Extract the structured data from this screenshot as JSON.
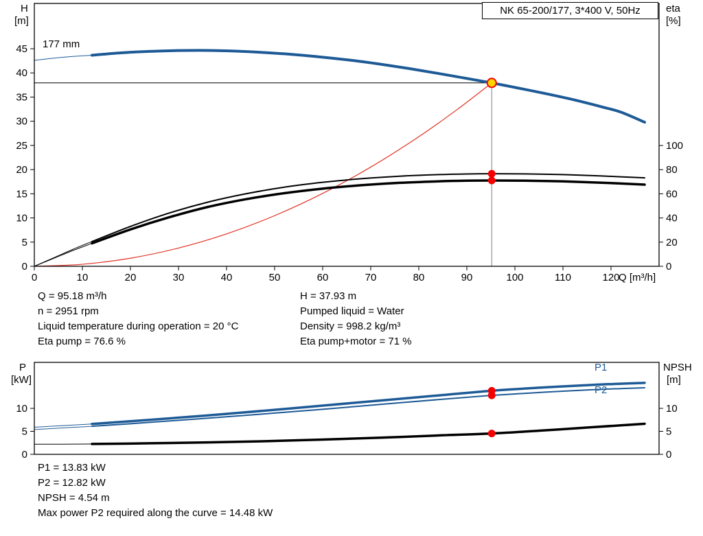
{
  "header": {
    "title": "NK 65-200/177, 3*400 V, 50Hz"
  },
  "labels": {
    "h": "H",
    "h_unit": "[m]",
    "eta": "eta",
    "eta_unit": "[%]",
    "q_axis": "Q [m³/h]",
    "p": "P",
    "p_unit": "[kW]",
    "npsh": "NPSH",
    "npsh_unit": "[m]",
    "impeller": "177 mm",
    "p1": "P1",
    "p2": "P2"
  },
  "info": {
    "q": "Q = 95.18 m³/h",
    "n": "n = 2951 rpm",
    "temp": "Liquid temperature during operation = 20 °C",
    "eta_pump": "Eta pump = 76.6 %",
    "h": "H = 37.93 m",
    "liquid": "Pumped liquid = Water",
    "density": "Density = 998.2 kg/m³",
    "eta_total": "Eta pump+motor = 71 %"
  },
  "results": {
    "p1": "P1 = 13.83 kW",
    "p2": "P2 = 12.82 kW",
    "npsh": "NPSH = 4.54 m",
    "maxp2": "Max power P2 required along the curve = 14.48 kW"
  },
  "colors": {
    "curve_blue": "#1d5a96",
    "system_red": "#e03022",
    "marker_red": "#f40000",
    "duty_yellow": "#ffd400",
    "guide_gray": "#808080"
  },
  "chart_data": [
    {
      "type": "line",
      "title": "NK 65-200/177, 3*400 V, 50Hz",
      "xlabel": "Q [m³/h]",
      "xlim": [
        0,
        130
      ],
      "x_ticks": [
        0,
        10,
        20,
        30,
        40,
        50,
        60,
        70,
        80,
        90,
        100,
        110,
        120
      ],
      "axes": {
        "left": {
          "label": "H [m]",
          "scale": [
            0,
            45
          ],
          "ticks": [
            0,
            5,
            10,
            15,
            20,
            25,
            30,
            35,
            40,
            45
          ]
        },
        "right": {
          "label": "eta [%]",
          "scale": [
            0,
            100
          ],
          "ticks": [
            0,
            20,
            40,
            60,
            80,
            100
          ]
        }
      },
      "series": [
        {
          "name": "system-curve",
          "axis": "left",
          "color": "#e03022",
          "width": 1.2,
          "points": [
            [
              0,
              0
            ],
            [
              10,
              0.42
            ],
            [
              20,
              1.67
            ],
            [
              30,
              3.77
            ],
            [
              40,
              6.7
            ],
            [
              50,
              10.47
            ],
            [
              60,
              15.07
            ],
            [
              70,
              20.52
            ],
            [
              80,
              26.8
            ],
            [
              88,
              32.43
            ],
            [
              95.18,
              37.93
            ]
          ]
        },
        {
          "name": "eta-pump-curve",
          "axis": "right",
          "color": "#000000",
          "width": 2,
          "lead": [
            [
              0,
              0
            ],
            [
              4,
              7
            ],
            [
              8,
              14
            ],
            [
              12,
              20.5
            ]
          ],
          "points": [
            [
              12,
              20.5
            ],
            [
              20,
              33
            ],
            [
              28,
              44
            ],
            [
              36,
              53
            ],
            [
              44,
              60
            ],
            [
              52,
              65.5
            ],
            [
              60,
              69.5
            ],
            [
              68,
              72.5
            ],
            [
              76,
              74.6
            ],
            [
              84,
              75.9
            ],
            [
              90,
              76.45
            ],
            [
              95.18,
              76.6
            ],
            [
              102,
              76.5
            ],
            [
              110,
              75.9
            ],
            [
              118,
              74.8
            ],
            [
              127,
              73.2
            ]
          ]
        },
        {
          "name": "eta-pump-motor-curve",
          "axis": "right",
          "color": "#000000",
          "width": 3.5,
          "lead": [
            [
              0,
              0
            ],
            [
              4,
              6.5
            ],
            [
              8,
              13
            ],
            [
              12,
              19
            ]
          ],
          "points": [
            [
              12,
              19
            ],
            [
              20,
              30.5
            ],
            [
              28,
              40.5
            ],
            [
              36,
              49
            ],
            [
              44,
              55.5
            ],
            [
              52,
              60.5
            ],
            [
              60,
              64.3
            ],
            [
              68,
              67.1
            ],
            [
              76,
              69.1
            ],
            [
              84,
              70.3
            ],
            [
              90,
              70.85
            ],
            [
              95.18,
              71
            ],
            [
              102,
              70.9
            ],
            [
              110,
              70.3
            ],
            [
              118,
              69.2
            ],
            [
              127,
              67.6
            ]
          ]
        },
        {
          "name": "head-curve-177mm",
          "axis": "left",
          "color": "#1d5a96",
          "width": 4,
          "lead": [
            [
              0,
              42.6
            ],
            [
              4,
              43.05
            ],
            [
              8,
              43.4
            ],
            [
              12,
              43.65
            ]
          ],
          "points": [
            [
              12,
              43.65
            ],
            [
              18,
              44.15
            ],
            [
              24,
              44.45
            ],
            [
              30,
              44.62
            ],
            [
              36,
              44.65
            ],
            [
              42,
              44.5
            ],
            [
              48,
              44.2
            ],
            [
              54,
              43.8
            ],
            [
              60,
              43.25
            ],
            [
              66,
              42.6
            ],
            [
              72,
              41.8
            ],
            [
              78,
              40.9
            ],
            [
              84,
              39.9
            ],
            [
              90,
              38.85
            ],
            [
              95.18,
              37.93
            ],
            [
              100,
              37.0
            ],
            [
              106,
              35.8
            ],
            [
              112,
              34.5
            ],
            [
              118,
              33.0
            ],
            [
              122,
              31.9
            ],
            [
              127,
              29.8
            ]
          ]
        }
      ],
      "guides": [
        {
          "type": "h",
          "axis": "left",
          "v": 37.93,
          "q0": 0,
          "q1": 95.18,
          "color": "#000000",
          "width": 1
        },
        {
          "type": "v",
          "axis": "left",
          "q": 95.18,
          "v0": 0,
          "v1": 37.93,
          "color": "#808080",
          "width": 1
        }
      ],
      "markers": [
        {
          "name": "eta-pump-point",
          "q": 95.18,
          "v": 76.6,
          "axis": "right",
          "fill": "#f40000",
          "r": 5.5
        },
        {
          "name": "eta-pump-motor-point",
          "q": 95.18,
          "v": 71,
          "axis": "right",
          "fill": "#f40000",
          "r": 5.5
        },
        {
          "name": "duty-point",
          "q": 95.18,
          "v": 37.93,
          "axis": "left",
          "fill": "#ffd400",
          "stroke": "#f40000",
          "r": 6.5
        }
      ]
    },
    {
      "type": "line",
      "xlim": [
        0,
        130
      ],
      "x_ticks": [],
      "axes": {
        "left": {
          "label": "P [kW]",
          "scale": [
            0,
            10
          ],
          "ticks": [
            0,
            5,
            10
          ]
        },
        "right": {
          "label": "NPSH [m]",
          "scale": [
            0,
            10
          ],
          "ticks": [
            0,
            5,
            10
          ]
        }
      },
      "series": [
        {
          "name": "p1-curve",
          "axis": "left",
          "color": "#1d5a96",
          "width": 3.5,
          "lead": [
            [
              0,
              5.9
            ],
            [
              6,
              6.25
            ],
            [
              12,
              6.6
            ]
          ],
          "points": [
            [
              12,
              6.6
            ],
            [
              24,
              7.5
            ],
            [
              36,
              8.45
            ],
            [
              48,
              9.5
            ],
            [
              60,
              10.6
            ],
            [
              72,
              11.7
            ],
            [
              84,
              12.8
            ],
            [
              95.18,
              13.83
            ],
            [
              106,
              14.55
            ],
            [
              116,
              15.1
            ],
            [
              122,
              15.35
            ],
            [
              127,
              15.55
            ]
          ]
        },
        {
          "name": "p2-curve",
          "axis": "left",
          "color": "#1d5a96",
          "width": 2,
          "lead": [
            [
              0,
              5.4
            ],
            [
              6,
              5.75
            ],
            [
              12,
              6.1
            ]
          ],
          "points": [
            [
              12,
              6.1
            ],
            [
              24,
              6.95
            ],
            [
              36,
              7.85
            ],
            [
              48,
              8.8
            ],
            [
              60,
              9.8
            ],
            [
              72,
              10.85
            ],
            [
              84,
              11.9
            ],
            [
              95.18,
              12.82
            ],
            [
              106,
              13.5
            ],
            [
              116,
              14.05
            ],
            [
              122,
              14.3
            ],
            [
              127,
              14.48
            ]
          ]
        },
        {
          "name": "npsh-curve",
          "axis": "left",
          "color": "#000000",
          "width": 3.5,
          "lead": [
            [
              0,
              2.2
            ],
            [
              6,
              2.2
            ],
            [
              12,
              2.25
            ]
          ],
          "points": [
            [
              12,
              2.25
            ],
            [
              24,
              2.4
            ],
            [
              36,
              2.6
            ],
            [
              48,
              2.85
            ],
            [
              60,
              3.2
            ],
            [
              72,
              3.62
            ],
            [
              84,
              4.1
            ],
            [
              95.18,
              4.54
            ],
            [
              106,
              5.2
            ],
            [
              116,
              5.9
            ],
            [
              122,
              6.3
            ],
            [
              127,
              6.65
            ]
          ]
        }
      ],
      "guides": [],
      "markers": [
        {
          "name": "p1-point",
          "q": 95.18,
          "v": 13.83,
          "axis": "left",
          "fill": "#f40000",
          "r": 5.5
        },
        {
          "name": "p2-point",
          "q": 95.18,
          "v": 12.82,
          "axis": "left",
          "fill": "#f40000",
          "r": 5.5
        },
        {
          "name": "npsh-point",
          "q": 95.18,
          "v": 4.54,
          "axis": "left",
          "fill": "#f40000",
          "r": 5.5
        }
      ]
    }
  ]
}
